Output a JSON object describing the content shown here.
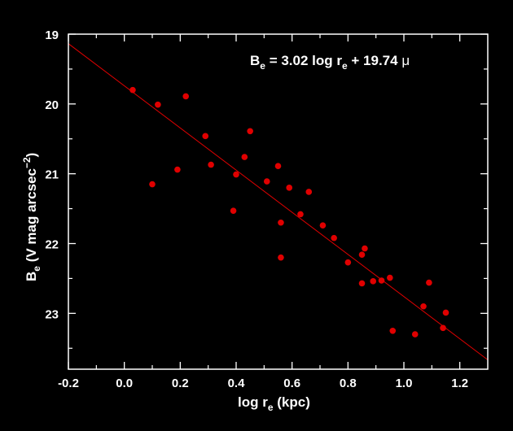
{
  "chart_data": {
    "type": "scatter",
    "annotation": {
      "B": "B",
      "B_sub": "e",
      "mid": " = 3.02 log r",
      "r_sub": "e",
      "tail": " + 19.74 ",
      "mu": "μ"
    },
    "xlabel": {
      "pre": "log r",
      "sub": "e",
      "post": "  (kpc)"
    },
    "ylabel": {
      "pre": "B",
      "sub": "e",
      "mid": "  (V mag arcsec",
      "sup": "−2",
      "post": ")"
    },
    "xlim": [
      -0.2,
      1.3
    ],
    "ylim": [
      19.0,
      23.8
    ],
    "y_inverted": true,
    "x_ticks": [
      "-0.2",
      "0.0",
      "0.2",
      "0.4",
      "0.6",
      "0.8",
      "1.0",
      "1.2"
    ],
    "y_ticks": [
      "19",
      "20",
      "21",
      "22",
      "23"
    ],
    "points": [
      [
        0.03,
        19.8
      ],
      [
        0.12,
        20.01
      ],
      [
        0.22,
        19.89
      ],
      [
        0.1,
        21.15
      ],
      [
        0.19,
        20.94
      ],
      [
        0.29,
        20.46
      ],
      [
        0.31,
        20.87
      ],
      [
        0.39,
        21.53
      ],
      [
        0.4,
        21.01
      ],
      [
        0.43,
        20.76
      ],
      [
        0.45,
        20.39
      ],
      [
        0.51,
        21.11
      ],
      [
        0.55,
        20.89
      ],
      [
        0.56,
        21.7
      ],
      [
        0.56,
        22.2
      ],
      [
        0.59,
        21.2
      ],
      [
        0.63,
        21.58
      ],
      [
        0.66,
        21.26
      ],
      [
        0.71,
        21.74
      ],
      [
        0.75,
        21.92
      ],
      [
        0.8,
        22.27
      ],
      [
        0.85,
        22.57
      ],
      [
        0.85,
        22.16
      ],
      [
        0.86,
        22.07
      ],
      [
        0.89,
        22.54
      ],
      [
        0.92,
        22.53
      ],
      [
        0.95,
        22.49
      ],
      [
        0.96,
        23.25
      ],
      [
        1.04,
        23.3
      ],
      [
        1.07,
        22.9
      ],
      [
        1.09,
        22.56
      ],
      [
        1.14,
        23.21
      ],
      [
        1.15,
        22.99
      ]
    ],
    "fit": {
      "slope": 3.02,
      "intercept": 19.74
    },
    "colors": {
      "background": "#000000",
      "axes": "#ffffff",
      "points": "#e00000",
      "fit_line": "#e00000"
    }
  }
}
